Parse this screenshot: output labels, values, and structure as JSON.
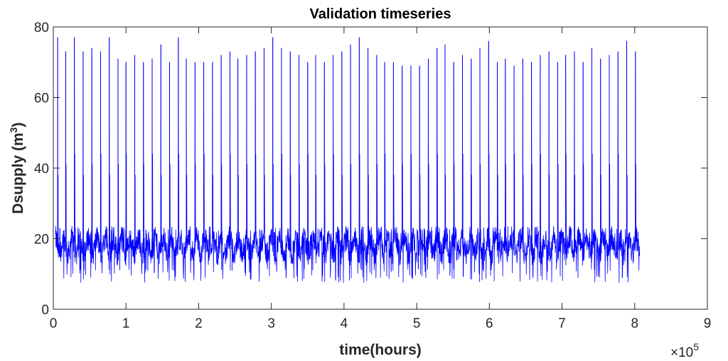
{
  "chart_data": {
    "type": "line",
    "title": "Validation timeseries",
    "xlabel": "time(hours)",
    "ylabel_main": "Dsupply (m",
    "ylabel_sup": "3",
    "ylabel_close": ")",
    "xlim": [
      0,
      9
    ],
    "ylim": [
      0,
      80
    ],
    "x_scale_label": "×10",
    "x_scale_exp": "5",
    "xticks": [
      0,
      1,
      2,
      3,
      4,
      5,
      6,
      7,
      8,
      9
    ],
    "yticks": [
      0,
      20,
      40,
      60,
      80
    ],
    "series": [
      {
        "name": "Dsupply",
        "color": "#0000ff",
        "x_start": 0.03,
        "x_end": 8.07,
        "baseline_mean": 18,
        "baseline_min": 7.5,
        "baseline_max": 23.5,
        "spike_x": [
          0.06,
          0.17,
          0.29,
          0.41,
          0.53,
          0.65,
          0.77,
          0.89,
          1.0,
          1.12,
          1.24,
          1.36,
          1.48,
          1.6,
          1.72,
          1.83,
          1.95,
          2.07,
          2.19,
          2.31,
          2.43,
          2.54,
          2.66,
          2.78,
          2.9,
          3.02,
          3.14,
          3.26,
          3.38,
          3.5,
          3.61,
          3.73,
          3.85,
          3.97,
          4.09,
          4.21,
          4.33,
          4.45,
          4.56,
          4.68,
          4.8,
          4.92,
          5.04,
          5.16,
          5.28,
          5.39,
          5.51,
          5.63,
          5.75,
          5.87,
          5.99,
          6.11,
          6.22,
          6.34,
          6.46,
          6.58,
          6.7,
          6.82,
          6.94,
          7.05,
          7.17,
          7.29,
          7.41,
          7.53,
          7.65,
          7.77,
          7.89,
          8.01
        ],
        "spike_peak": [
          77,
          73,
          77,
          73,
          74,
          73,
          77,
          71,
          70,
          72,
          70,
          71,
          75,
          70,
          77,
          71,
          70,
          70,
          70,
          72,
          73,
          71,
          72,
          73,
          74,
          77,
          74,
          73,
          72,
          70,
          72,
          70,
          72,
          73,
          75,
          77,
          74,
          72,
          70,
          70,
          69,
          69,
          69,
          71,
          74,
          75,
          70,
          72,
          71,
          74,
          76,
          70,
          71,
          69,
          71,
          70,
          72,
          73,
          70,
          72,
          73,
          70,
          74,
          71,
          72,
          73,
          76,
          73
        ]
      }
    ]
  }
}
